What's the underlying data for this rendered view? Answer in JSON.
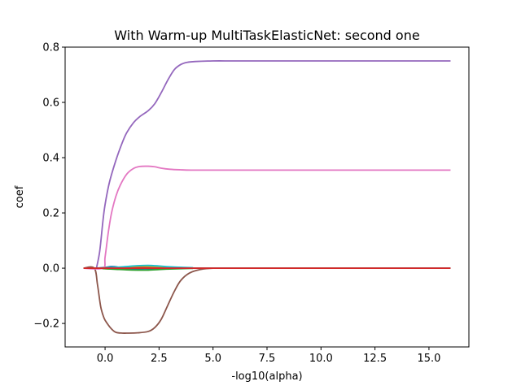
{
  "chart_data": {
    "type": "line",
    "title": "With Warm-up MultiTaskElasticNet: second one",
    "xlabel": "-log10(alpha)",
    "ylabel": "coef",
    "xlim": [
      -1.85,
      16.85
    ],
    "ylim": [
      -0.285,
      0.8
    ],
    "xticks": [
      0.0,
      2.5,
      5.0,
      7.5,
      10.0,
      12.5,
      15.0
    ],
    "xtick_labels": [
      "0.0",
      "2.5",
      "5.0",
      "7.5",
      "10.0",
      "12.5",
      "15.0"
    ],
    "yticks": [
      -0.2,
      0.0,
      0.2,
      0.4,
      0.6,
      0.8
    ],
    "ytick_labels": [
      "−0.2",
      "0.0",
      "0.2",
      "0.4",
      "0.6",
      "0.8"
    ],
    "grid": false,
    "legend": "none",
    "series": [
      {
        "color": "#1f77b4",
        "x": [
          -1.0,
          -0.5,
          0.0,
          0.3,
          0.6,
          1.0,
          1.5,
          2.0,
          3.0,
          4.0,
          5.0,
          16.0
        ],
        "values": [
          0.0,
          0.0,
          0.003,
          0.006,
          0.004,
          -0.002,
          -0.004,
          -0.002,
          0.0,
          0.0,
          0.0,
          0.0
        ]
      },
      {
        "color": "#ff7f0e",
        "x": [
          -1.0,
          -0.5,
          0.0,
          0.5,
          1.0,
          2.0,
          3.0,
          4.0,
          5.0,
          16.0
        ],
        "values": [
          0.0,
          0.0,
          -0.002,
          -0.003,
          -0.001,
          0.001,
          0.001,
          0.0,
          0.0,
          0.0
        ]
      },
      {
        "color": "#2ca02c",
        "x": [
          -1.0,
          -0.5,
          0.0,
          0.5,
          1.0,
          1.5,
          2.0,
          2.5,
          3.0,
          4.0,
          5.0,
          16.0
        ],
        "values": [
          0.0,
          0.0,
          -0.002,
          -0.004,
          -0.006,
          -0.007,
          -0.007,
          -0.005,
          -0.003,
          -0.001,
          0.0,
          0.0
        ]
      },
      {
        "color": "#d62728",
        "x": [
          -1.0,
          -0.5,
          0.0,
          1.0,
          2.0,
          3.0,
          4.0,
          5.0,
          16.0
        ],
        "values": [
          0.0,
          0.0,
          0.001,
          0.002,
          0.002,
          0.001,
          0.0,
          0.0,
          0.0
        ]
      },
      {
        "color": "#9467bd",
        "x": [
          -0.4,
          -0.25,
          -0.1,
          0.0,
          0.2,
          0.5,
          0.8,
          1.0,
          1.3,
          1.6,
          2.0,
          2.3,
          2.6,
          2.9,
          3.2,
          3.5,
          3.8,
          4.2,
          5.0,
          6.0,
          8.0,
          16.0
        ],
        "values": [
          0.0,
          0.06,
          0.17,
          0.23,
          0.31,
          0.39,
          0.455,
          0.49,
          0.525,
          0.548,
          0.57,
          0.595,
          0.635,
          0.68,
          0.718,
          0.737,
          0.745,
          0.748,
          0.75,
          0.75,
          0.75,
          0.75
        ]
      },
      {
        "color": "#8c564b",
        "x": [
          -1.0,
          -0.5,
          -0.35,
          -0.2,
          -0.05,
          0.1,
          0.3,
          0.5,
          0.8,
          1.0,
          1.5,
          2.0,
          2.3,
          2.6,
          2.9,
          3.2,
          3.5,
          3.9,
          4.4,
          5.0,
          6.0,
          16.0
        ],
        "values": [
          0.0,
          0.0,
          -0.06,
          -0.14,
          -0.18,
          -0.2,
          -0.22,
          -0.232,
          -0.235,
          -0.235,
          -0.234,
          -0.229,
          -0.215,
          -0.185,
          -0.135,
          -0.085,
          -0.045,
          -0.018,
          -0.005,
          0.0,
          0.0,
          0.0
        ]
      },
      {
        "color": "#e377c2",
        "x": [
          -1.0,
          -0.1,
          0.0,
          0.15,
          0.3,
          0.5,
          0.7,
          1.0,
          1.3,
          1.6,
          2.0,
          2.3,
          2.6,
          3.0,
          3.5,
          4.0,
          5.0,
          16.0
        ],
        "values": [
          0.0,
          0.0,
          0.04,
          0.13,
          0.2,
          0.26,
          0.3,
          0.34,
          0.36,
          0.368,
          0.369,
          0.367,
          0.362,
          0.358,
          0.356,
          0.355,
          0.355,
          0.355
        ]
      },
      {
        "color": "#7f7f7f",
        "x": [
          -1.0,
          16.0
        ],
        "values": [
          0.0,
          0.0
        ]
      },
      {
        "color": "#bcbd22",
        "x": [
          -1.0,
          -0.5,
          0.0,
          0.5,
          1.0,
          1.5,
          2.0,
          2.5,
          3.0,
          4.0,
          5.0,
          16.0
        ],
        "values": [
          0.0,
          0.0,
          0.001,
          0.003,
          0.005,
          0.007,
          0.007,
          0.006,
          0.004,
          0.001,
          0.0,
          0.0
        ]
      },
      {
        "color": "#17becf",
        "x": [
          -1.0,
          -0.5,
          0.0,
          0.5,
          1.0,
          1.5,
          2.0,
          2.5,
          3.0,
          4.0,
          5.0,
          16.0
        ],
        "values": [
          0.0,
          0.0,
          0.001,
          0.003,
          0.006,
          0.009,
          0.01,
          0.008,
          0.005,
          0.002,
          0.0,
          0.0
        ]
      },
      {
        "color": "#d62728",
        "x": [
          -1.0,
          16.0
        ],
        "values": [
          0.0,
          0.0
        ]
      }
    ]
  }
}
